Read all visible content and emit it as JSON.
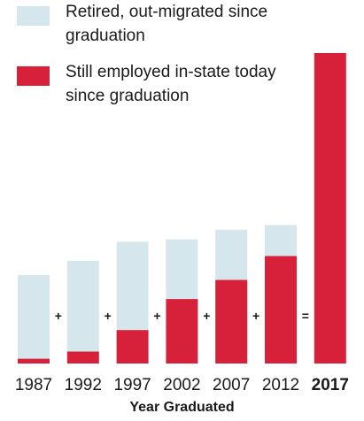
{
  "chart_data": {
    "type": "bar",
    "stacked": true,
    "categories": [
      "1987",
      "1992",
      "1997",
      "2002",
      "2007",
      "2012",
      "2017"
    ],
    "highlight_category": "2017",
    "series": [
      {
        "name": "Still employed in-state today since graduation",
        "color": "#d7203a",
        "values": [
          2,
          5,
          14,
          27,
          35,
          45,
          130
        ]
      },
      {
        "name": "Retired, out-migrated since graduation",
        "color": "#d6e6ed",
        "values": [
          35,
          38,
          37,
          25,
          21,
          13,
          0
        ]
      }
    ],
    "operators": [
      "+",
      "+",
      "+",
      "+",
      "+",
      "="
    ],
    "xlabel": "Year Graduated",
    "ylabel": "",
    "ylim": [
      0,
      130
    ],
    "grid": false,
    "legend_position": "top-left"
  }
}
